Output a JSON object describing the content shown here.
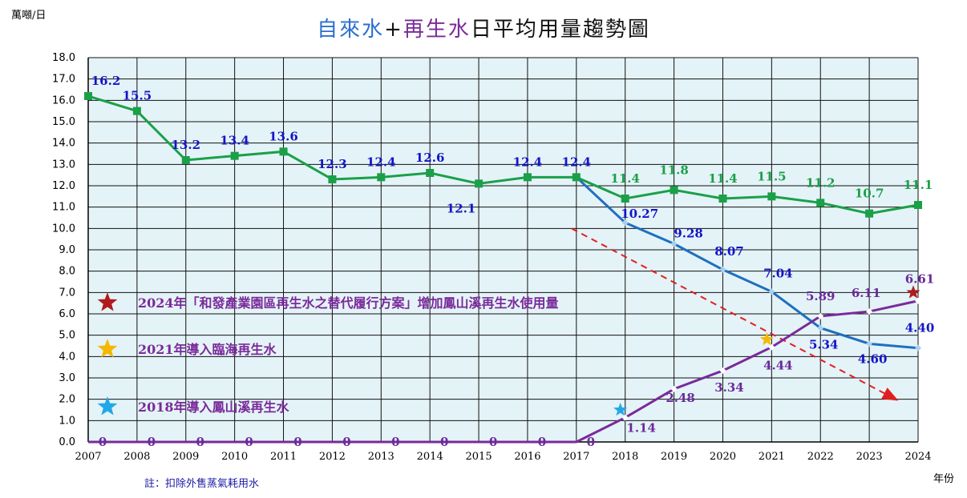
{
  "chart_data": {
    "type": "line",
    "title_parts": [
      {
        "text": "自來水",
        "color": "#2b6fd0"
      },
      {
        "text": "+",
        "color": "#111111"
      },
      {
        "text": "再生水",
        "color": "#7a2a9a"
      },
      {
        "text": "日平均用量趨勢圖",
        "color": "#111111"
      }
    ],
    "ylabel": "萬噸/日",
    "xlabel": "年份",
    "note": "註：扣除外售蒸氣耗用水",
    "ylim": [
      0,
      18
    ],
    "ytick_step": 1,
    "grid": true,
    "x": [
      2007,
      2008,
      2009,
      2010,
      2011,
      2012,
      2013,
      2014,
      2015,
      2016,
      2017,
      2018,
      2019,
      2020,
      2021,
      2022,
      2023,
      2024
    ],
    "series": [
      {
        "color": "#1aa048",
        "marker": "square",
        "values": [
          16.2,
          15.5,
          13.2,
          13.4,
          13.6,
          12.3,
          12.4,
          12.6,
          12.1,
          12.4,
          12.4,
          11.4,
          11.8,
          11.4,
          11.5,
          11.2,
          10.7,
          11.1
        ],
        "labels": [
          "16.2",
          "15.5",
          "13.2",
          "13.4",
          "13.6",
          "12.3",
          "12.4",
          "12.6",
          "12.1",
          "12.4",
          "12.4",
          "11.4",
          "11.8",
          "11.4",
          "11.5",
          "11.2",
          "10.7",
          "11.1"
        ]
      },
      {
        "color": "#1f6fbf",
        "marker": "diamond",
        "x": [
          2017,
          2018,
          2019,
          2020,
          2021,
          2022,
          2023,
          2024
        ],
        "values": [
          12.4,
          10.27,
          9.28,
          8.07,
          7.04,
          5.34,
          4.6,
          4.4
        ],
        "labels": [
          "",
          "10.27",
          "9.28",
          "8.07",
          "7.04",
          "5.34",
          "4.60",
          "4.40"
        ]
      },
      {
        "color": "#7a2a9a",
        "marker": "diamond",
        "values": [
          0,
          0,
          0,
          0,
          0,
          0,
          0,
          0,
          0,
          0,
          0,
          1.14,
          2.48,
          3.34,
          4.44,
          5.89,
          6.11,
          6.61
        ],
        "labels": [
          "0",
          "0",
          "0",
          "0",
          "0",
          "0",
          "0",
          "0",
          "0",
          "0",
          "0",
          "1.14",
          "2.48",
          "3.34",
          "4.44",
          "5.89",
          "6.11",
          "6.61"
        ]
      }
    ],
    "annotations": [
      {
        "text": "2024年「和發產業園區再生水之替代履行方案」增加鳳山溪再生水使用量",
        "star_color": "#b01c1c"
      },
      {
        "text": "2021年導入臨海再生水",
        "star_color": "#f5b800"
      },
      {
        "text": "2018年導入鳳山溪再生水",
        "star_color": "#22a8e8"
      }
    ],
    "milestone_stars": [
      {
        "x": 2018,
        "y": 1.5,
        "color": "#22a8e8"
      },
      {
        "x": 2021,
        "y": 4.8,
        "color": "#f5b800"
      },
      {
        "x": 2024,
        "y": 7.0,
        "color": "#b01c1c"
      }
    ],
    "trend_arrow": {
      "from": [
        2017,
        10.0
      ],
      "to": [
        2024,
        2.0
      ],
      "color": "#e02020"
    },
    "colors": {
      "plot_bg": "#e4f3f7",
      "grid": "#111111",
      "annotation_text": "#7a2a9a"
    }
  }
}
